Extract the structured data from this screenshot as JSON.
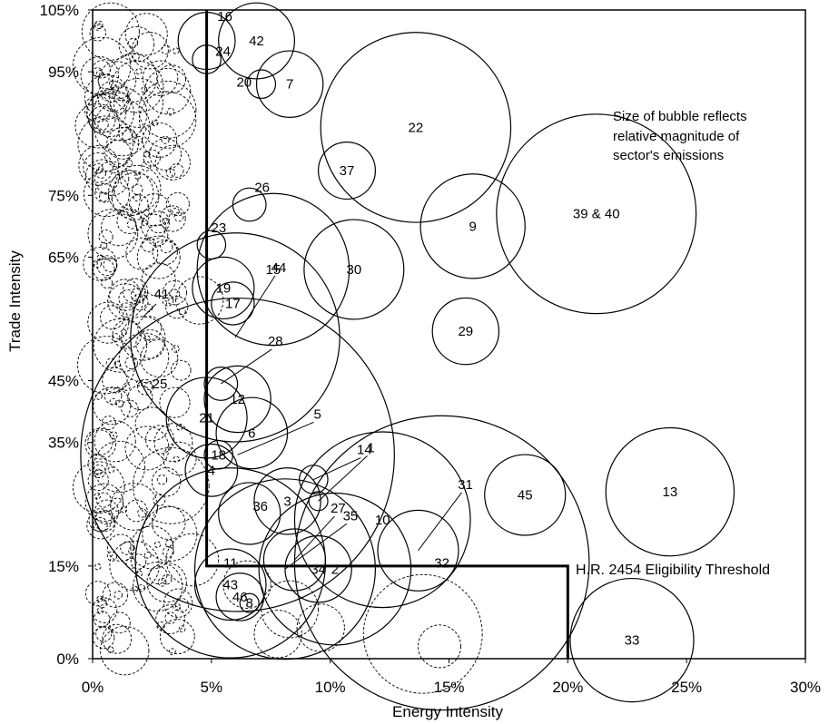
{
  "chart_data": {
    "type": "scatter",
    "title": "",
    "xlabel": "Energy Intensity",
    "ylabel": "Trade Intensity",
    "xlim": [
      0,
      30
    ],
    "ylim": [
      0,
      105
    ],
    "x_ticks": [
      {
        "value": 0,
        "label": "0%"
      },
      {
        "value": 5,
        "label": "5%"
      },
      {
        "value": 10,
        "label": "10%"
      },
      {
        "value": 15,
        "label": "15%"
      },
      {
        "value": 20,
        "label": "20%"
      },
      {
        "value": 25,
        "label": "25%"
      },
      {
        "value": 30,
        "label": "30%"
      }
    ],
    "y_ticks": [
      {
        "value": 0,
        "label": "0%"
      },
      {
        "value": 15,
        "label": "15%"
      },
      {
        "value": 35,
        "label": "35%"
      },
      {
        "value": 45,
        "label": "45%"
      },
      {
        "value": 65,
        "label": "65%"
      },
      {
        "value": 75,
        "label": "75%"
      },
      {
        "value": 95,
        "label": "95%"
      },
      {
        "value": 105,
        "label": "105%"
      }
    ],
    "grid": false,
    "note": "Size of bubble reflects relative magnitude of sector's emissions",
    "threshold": {
      "label": "H.R. 2454 Eligibility Threshold",
      "path": [
        [
          4.8,
          105
        ],
        [
          4.8,
          15
        ],
        [
          20,
          15
        ],
        [
          20,
          0
        ]
      ]
    },
    "bubbles": [
      {
        "label": "16",
        "x": 4.8,
        "y": 100,
        "size": 1.2
      },
      {
        "label": "42",
        "x": 6.9,
        "y": 100,
        "size": 1.6
      },
      {
        "label": "24",
        "x": 4.8,
        "y": 97,
        "size": 0.6
      },
      {
        "label": "20",
        "x": 7.1,
        "y": 93,
        "size": 0.6
      },
      {
        "label": "7",
        "x": 8.3,
        "y": 93,
        "size": 1.4
      },
      {
        "label": "22",
        "x": 13.6,
        "y": 86,
        "size": 4.0
      },
      {
        "label": "37",
        "x": 10.7,
        "y": 79,
        "size": 1.2
      },
      {
        "label": "26",
        "x": 6.6,
        "y": 73.5,
        "size": 0.7
      },
      {
        "label": "9",
        "x": 16.0,
        "y": 70,
        "size": 2.2
      },
      {
        "label": "39 & 40",
        "x": 21.2,
        "y": 72,
        "size": 4.2
      },
      {
        "label": "23",
        "x": 5.0,
        "y": 67,
        "size": 0.6
      },
      {
        "label": "15",
        "x": 7.6,
        "y": 63,
        "size": 3.2
      },
      {
        "label": "30",
        "x": 11.0,
        "y": 63,
        "size": 2.1
      },
      {
        "label": "19",
        "x": 5.5,
        "y": 60,
        "size": 1.3
      },
      {
        "label": "17",
        "x": 5.9,
        "y": 57.5,
        "size": 0.9
      },
      {
        "label": "29",
        "x": 15.7,
        "y": 53,
        "size": 1.4
      },
      {
        "label": "44",
        "x": 6.0,
        "y": 52,
        "size": 4.4
      },
      {
        "label": "28",
        "x": 5.4,
        "y": 44.5,
        "size": 0.7
      },
      {
        "label": "12",
        "x": 6.1,
        "y": 42,
        "size": 1.4
      },
      {
        "label": "21",
        "x": 4.8,
        "y": 39,
        "size": 1.7
      },
      {
        "label": "6",
        "x": 6.7,
        "y": 36.5,
        "size": 1.5
      },
      {
        "label": "18",
        "x": 5.3,
        "y": 33,
        "size": 0.6
      },
      {
        "label": "4",
        "x": 5.0,
        "y": 30.5,
        "size": 1.1
      },
      {
        "label": "5",
        "x": 6.1,
        "y": 33,
        "size": 6.6
      },
      {
        "label": "14",
        "x": 9.3,
        "y": 29,
        "size": 0.6
      },
      {
        "label": "1",
        "x": 9.5,
        "y": 25.5,
        "size": 0.4
      },
      {
        "label": "3",
        "x": 8.2,
        "y": 25.5,
        "size": 1.4
      },
      {
        "label": "36",
        "x": 6.6,
        "y": 23.5,
        "size": 1.3
      },
      {
        "label": "10",
        "x": 12.2,
        "y": 22.5,
        "size": 3.7
      },
      {
        "label": "45",
        "x": 18.2,
        "y": 26.5,
        "size": 1.7
      },
      {
        "label": "13",
        "x": 24.3,
        "y": 27,
        "size": 2.7
      },
      {
        "label": "31",
        "x": 13.7,
        "y": 17.5,
        "size": 1.7
      },
      {
        "label": "32",
        "x": 14.7,
        "y": 15.5,
        "size": 6.2
      },
      {
        "label": "27",
        "x": 8.5,
        "y": 16,
        "size": 1.3
      },
      {
        "label": "34",
        "x": 9.5,
        "y": 14.5,
        "size": 1.4
      },
      {
        "label": "2",
        "x": 10.2,
        "y": 14.5,
        "size": 3.2
      },
      {
        "label": "35",
        "x": 8.1,
        "y": 14.5,
        "size": 3.8
      },
      {
        "label": "43",
        "x": 5.8,
        "y": 12,
        "size": 1.5
      },
      {
        "label": "11",
        "x": 5.8,
        "y": 15.5,
        "size": 4.0
      },
      {
        "label": "46",
        "x": 6.2,
        "y": 10,
        "size": 1.0
      },
      {
        "label": "8",
        "x": 6.6,
        "y": 9,
        "size": 0.4
      },
      {
        "label": "33",
        "x": 22.7,
        "y": 3,
        "size": 2.6
      }
    ],
    "ineligible_bubbles_style": "dashed"
  }
}
